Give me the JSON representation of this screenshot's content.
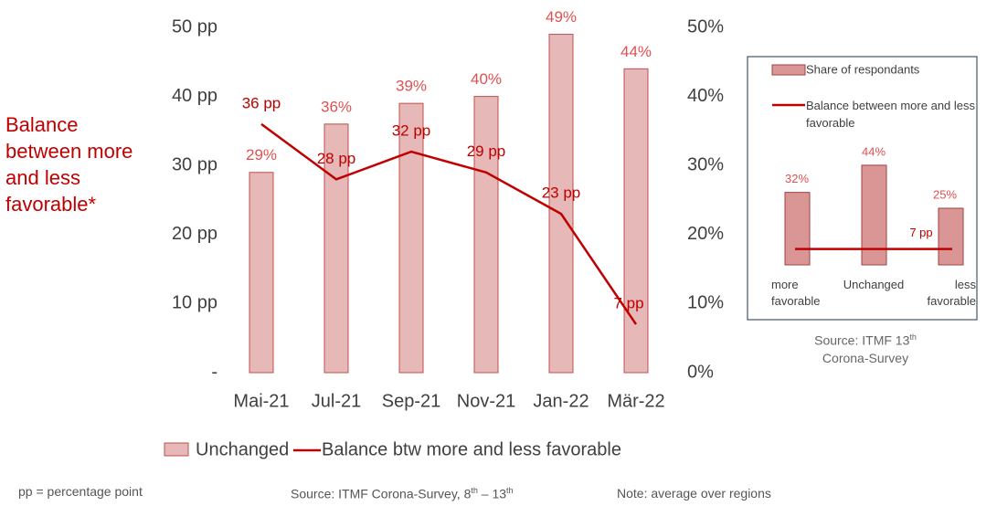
{
  "chart_data": [
    {
      "type": "bar_line",
      "ylabel": "Balance between more and less favorable*",
      "categories": [
        "Mai-21",
        "Jul-21",
        "Sep-21",
        "Nov-21",
        "Jan-22",
        "Mär-22"
      ],
      "series": [
        {
          "name": "Unchanged",
          "type": "bar",
          "axis": "y2",
          "color": "#e6b8b7",
          "edge": "#c0504d",
          "values": [
            29,
            36,
            39,
            40,
            49,
            44
          ],
          "value_labels": [
            "29%",
            "36%",
            "39%",
            "40%",
            "49%",
            "44%"
          ]
        },
        {
          "name": "Balance btw more and less favorable",
          "type": "line",
          "color": "#c00000",
          "values": [
            36,
            28,
            32,
            29,
            23,
            7
          ],
          "value_labels": [
            "36 pp",
            "28 pp",
            "32 pp",
            "29 pp",
            "23 pp",
            "7 pp"
          ]
        }
      ],
      "ylim": [
        0,
        50
      ],
      "yticks": [
        {
          "value": 0,
          "label": "-"
        },
        {
          "value": 10,
          "label": "10 pp"
        },
        {
          "value": 20,
          "label": "20 pp"
        },
        {
          "value": 30,
          "label": "30 pp"
        },
        {
          "value": 40,
          "label": "40 pp"
        },
        {
          "value": 50,
          "label": "50 pp"
        }
      ],
      "y2lim": [
        0,
        50
      ],
      "y2ticks": [
        {
          "value": 0,
          "label": "0%"
        },
        {
          "value": 10,
          "label": "10%"
        },
        {
          "value": 20,
          "label": "20%"
        },
        {
          "value": 30,
          "label": "30%"
        },
        {
          "value": 40,
          "label": "40%"
        },
        {
          "value": 50,
          "label": "50%"
        }
      ],
      "legend": "bottom"
    },
    {
      "type": "bar",
      "categories": [
        "more favorable",
        "Unchanged",
        "less favorable"
      ],
      "series": [
        {
          "name": "Share of respondants",
          "color": "#d99694",
          "edge": "#a0413f",
          "values": [
            32,
            44,
            25
          ],
          "value_labels": [
            "32%",
            "44%",
            "25%"
          ]
        }
      ],
      "hline": {
        "name": "Balance between more and less favorable",
        "color": "#c00000",
        "value": 7,
        "value_label": "7 pp"
      },
      "ylim": [
        0,
        50
      ],
      "legend": "top",
      "source": [
        "Source: ITMF 13",
        "th",
        "Corona-Survey"
      ]
    }
  ],
  "notes": {
    "pp": "pp = percentage point",
    "source": [
      "Source: ITMF Corona-Survey, 8",
      "th",
      " – 13",
      "th"
    ],
    "note": "Note: average over regions"
  }
}
